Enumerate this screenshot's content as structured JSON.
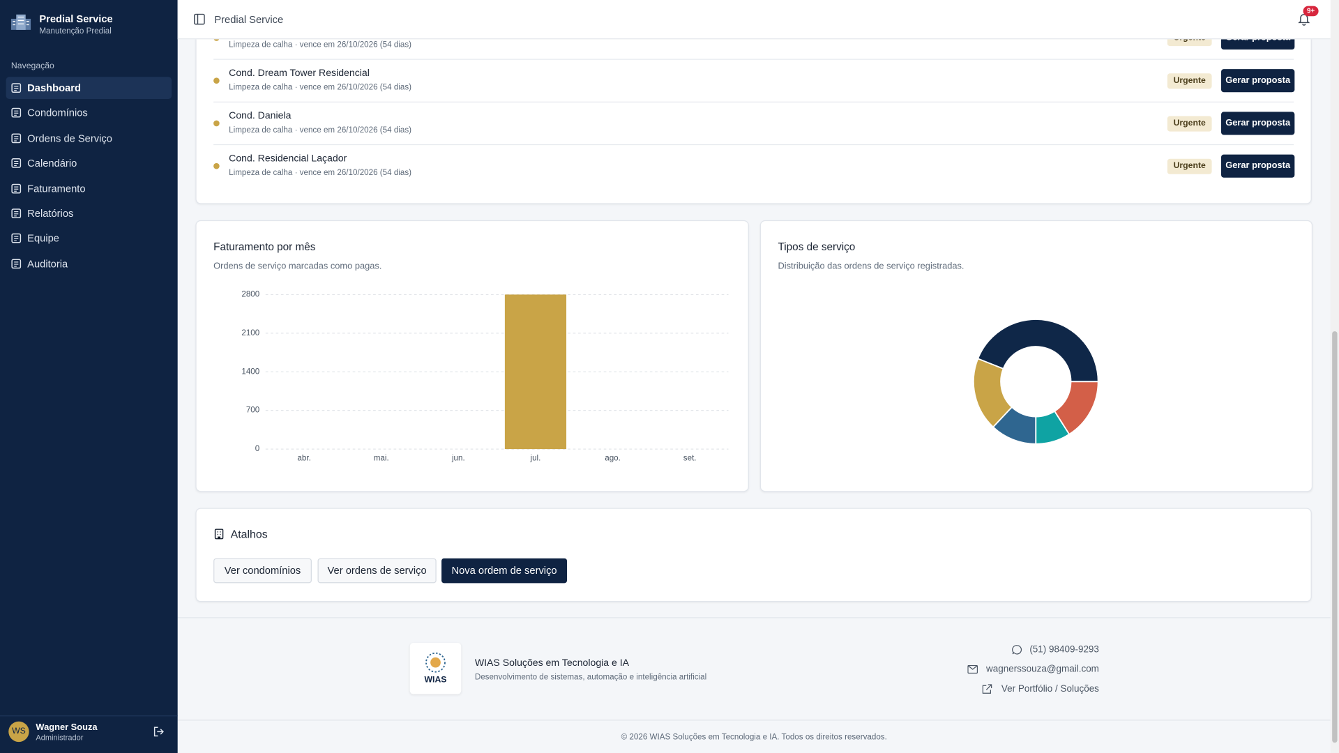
{
  "sidebar": {
    "brand": "Predial Service",
    "tagline": "Manutenção Predial",
    "section": "Navegação",
    "items": [
      "Dashboard",
      "Condomínios",
      "Ordens de Serviço",
      "Calendário",
      "Faturamento",
      "Relatórios",
      "Equipe",
      "Auditoria"
    ],
    "user": {
      "initials": "WS",
      "name": "Wagner Souza",
      "role": "Administrador"
    }
  },
  "header": {
    "title": "Predial Service",
    "badge": "9+"
  },
  "alerts": [
    {
      "detail": "Limpeza de calha · vence em 26/10/2026 (54 dias)",
      "status": "Urgente",
      "action": "Gerar proposta"
    },
    {
      "name": "Cond. Dream Tower Residencial",
      "detail": "Limpeza de calha · vence em 26/10/2026 (54 dias)",
      "status": "Urgente",
      "action": "Gerar proposta"
    },
    {
      "name": "Cond. Daniela",
      "detail": "Limpeza de calha · vence em 26/10/2026 (54 dias)",
      "status": "Urgente",
      "action": "Gerar proposta"
    },
    {
      "name": "Cond. Residencial Laçador",
      "detail": "Limpeza de calha · vence em 26/10/2026 (54 dias)",
      "status": "Urgente",
      "action": "Gerar proposta"
    }
  ],
  "chart_data": [
    {
      "type": "bar",
      "title": "Faturamento por mês",
      "subtitle": "Ordens de serviço marcadas como pagas.",
      "categories": [
        "abr.",
        "mai.",
        "jun.",
        "jul.",
        "ago.",
        "set."
      ],
      "values": [
        0,
        0,
        0,
        2800,
        0,
        0
      ],
      "color": "#c9a447",
      "ylim": [
        0,
        2800
      ],
      "yticks": [
        0,
        700,
        1400,
        2100,
        2800
      ],
      "grid": true
    },
    {
      "type": "pie",
      "title": "Tipos de serviço",
      "subtitle": "Distribuição das ordens de serviço registradas.",
      "values": [
        44,
        19,
        12,
        9,
        16
      ],
      "colors": [
        "#0f2748",
        "#c9a447",
        "#2f6690",
        "#0fa3a3",
        "#d35f48"
      ],
      "donut": true
    }
  ],
  "shortcuts": {
    "title": "Atalhos",
    "buttons": [
      "Ver condomínios",
      "Ver ordens de serviço",
      "Nova ordem de serviço"
    ]
  },
  "footer": {
    "logo": "WIAS",
    "company": "WIAS Soluções em Tecnologia e IA",
    "description": "Desenvolvimento de sistemas, automação e inteligência artificial",
    "phone": "(51) 98409-9293",
    "email": "wagnerssouza@gmail.com",
    "link": "Ver Portfólio / Soluções",
    "copyright": "© 2026 WIAS Soluções em Tecnologia e IA. Todos os direitos reservados."
  }
}
